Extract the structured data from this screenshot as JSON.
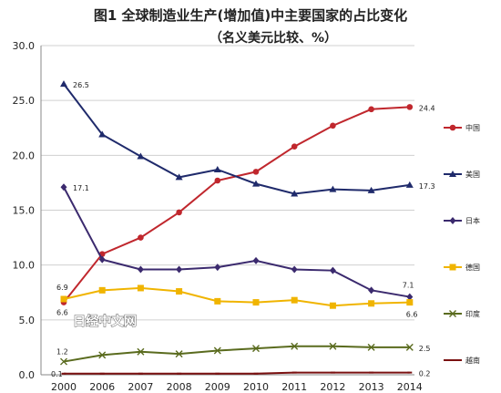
{
  "chart_data": {
    "type": "line",
    "title": "图1 全球制造业生产(增加值)中主要国家的占比变化",
    "subtitle": "（名义美元比较、%）",
    "watermark": "日经中文网",
    "x": [
      "2000",
      "2006",
      "2007",
      "2008",
      "2009",
      "2010",
      "2011",
      "2012",
      "2013",
      "2014"
    ],
    "ylim": [
      0,
      30
    ],
    "yticks": [
      "0.0",
      "5.0",
      "10.0",
      "15.0",
      "20.0",
      "25.0",
      "30.0"
    ],
    "grid": true,
    "legend_position": "right",
    "series": [
      {
        "name": "中国",
        "key": "china",
        "color": "#c0272d",
        "marker": "circle",
        "values": [
          6.6,
          11.0,
          12.5,
          14.8,
          17.7,
          18.5,
          20.8,
          22.7,
          24.2,
          24.4
        ],
        "start_label": "6.6",
        "end_label": "24.4"
      },
      {
        "name": "美国",
        "key": "usa",
        "color": "#1f2a6b",
        "marker": "triangle",
        "values": [
          26.5,
          21.9,
          19.9,
          18.0,
          18.7,
          17.4,
          16.5,
          16.9,
          16.8,
          17.3
        ],
        "start_label": "26.5",
        "end_label": "17.3"
      },
      {
        "name": "日本",
        "key": "japan",
        "color": "#3b2a6e",
        "marker": "diamond",
        "values": [
          17.1,
          10.5,
          9.6,
          9.6,
          9.8,
          10.4,
          9.6,
          9.5,
          7.7,
          7.1
        ],
        "start_label": "17.1",
        "end_label": "7.1"
      },
      {
        "name": "德国",
        "key": "germany",
        "color": "#f0b400",
        "marker": "square",
        "values": [
          6.9,
          7.7,
          7.9,
          7.6,
          6.7,
          6.6,
          6.8,
          6.3,
          6.5,
          6.6
        ],
        "start_label": "6.9",
        "end_label": "6.6"
      },
      {
        "name": "印度",
        "key": "india",
        "color": "#5a6b1e",
        "marker": "x",
        "values": [
          1.2,
          1.8,
          2.1,
          1.9,
          2.2,
          2.4,
          2.6,
          2.6,
          2.5,
          2.5
        ],
        "start_label": "1.2",
        "end_label": "2.5"
      },
      {
        "name": "越南",
        "key": "vietnam",
        "color": "#7a1010",
        "marker": "dash",
        "values": [
          0.1,
          0.1,
          0.1,
          0.1,
          0.1,
          0.1,
          0.2,
          0.2,
          0.2,
          0.2
        ],
        "start_label": "0.1",
        "end_label": "0.2"
      }
    ]
  }
}
